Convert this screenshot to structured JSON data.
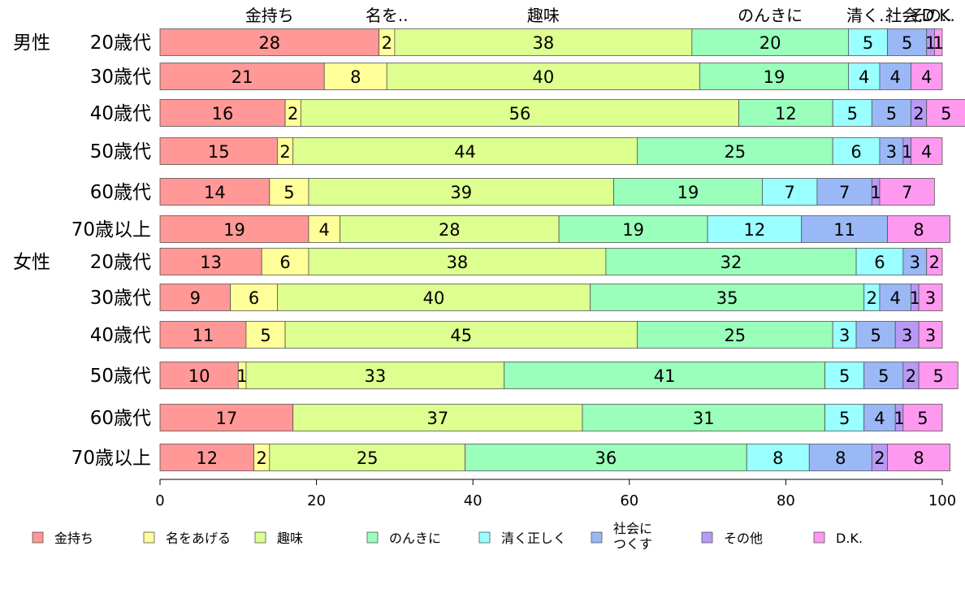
{
  "chart_data": {
    "type": "bar",
    "orientation": "horizontal",
    "stacked": true,
    "xlim": [
      0,
      100
    ],
    "xticks": [
      "0",
      "20",
      "40",
      "60",
      "80",
      "100"
    ],
    "groups": [
      {
        "label": "男性",
        "rows": [
          {
            "label": "20歳代",
            "values": [
              28,
              2,
              38,
              20,
              5,
              5,
              1,
              1
            ]
          },
          {
            "label": "30歳代",
            "values": [
              21,
              8,
              40,
              19,
              4,
              4,
              0,
              4
            ]
          },
          {
            "label": "40歳代",
            "values": [
              16,
              2,
              56,
              12,
              5,
              5,
              2,
              5
            ]
          },
          {
            "label": "50歳代",
            "values": [
              15,
              2,
              44,
              25,
              6,
              3,
              1,
              4
            ]
          },
          {
            "label": "60歳代",
            "values": [
              14,
              5,
              39,
              19,
              7,
              7,
              1,
              7
            ]
          },
          {
            "label": "70歳以上",
            "values": [
              19,
              4,
              28,
              19,
              12,
              11,
              0,
              8
            ]
          }
        ]
      },
      {
        "label": "女性",
        "rows": [
          {
            "label": "20歳代",
            "values": [
              13,
              6,
              38,
              32,
              6,
              3,
              0,
              2
            ]
          },
          {
            "label": "30歳代",
            "values": [
              9,
              6,
              40,
              35,
              2,
              4,
              1,
              3
            ]
          },
          {
            "label": "40歳代",
            "values": [
              11,
              5,
              45,
              25,
              3,
              5,
              3,
              3
            ]
          },
          {
            "label": "50歳代",
            "values": [
              10,
              1,
              33,
              41,
              5,
              5,
              2,
              5
            ]
          },
          {
            "label": "60歳代",
            "values": [
              17,
              0,
              37,
              31,
              5,
              4,
              1,
              5
            ]
          },
          {
            "label": "70歳以上",
            "values": [
              12,
              2,
              25,
              36,
              8,
              8,
              2,
              8
            ]
          }
        ]
      }
    ],
    "series": [
      {
        "name": "金持ち",
        "top_label": "金持ち",
        "color": "#FF9896"
      },
      {
        "name": "名をあげる",
        "top_label": "名を..",
        "color": "#FFFF99"
      },
      {
        "name": "趣味",
        "top_label": "趣味",
        "color": "#DDFF8F"
      },
      {
        "name": "のんきに",
        "top_label": "のんきに",
        "color": "#99FFBB"
      },
      {
        "name": "清く正しく",
        "top_label": "清く..",
        "color": "#99FFFF"
      },
      {
        "name": [
          "社会に",
          "つくす"
        ],
        "top_label": "社会..",
        "color": "#99B8F5"
      },
      {
        "name": "その他",
        "top_label": "その..",
        "color": "#B899F5"
      },
      {
        "name": "D.K.",
        "top_label": "D.K.",
        "color": "#FF99F0"
      }
    ],
    "legend_placement": "bottom"
  }
}
